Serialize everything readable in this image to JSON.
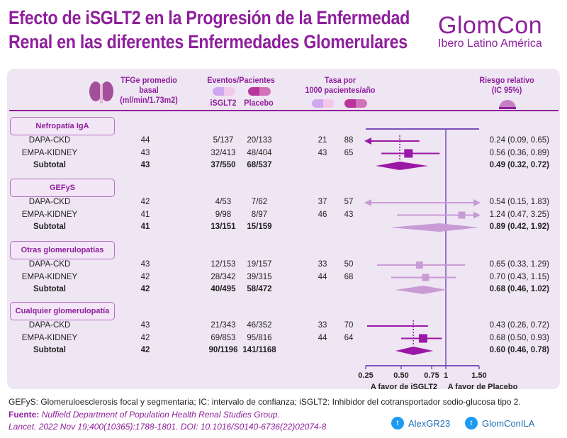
{
  "title": [
    "Efecto de iSGLT2 en la Progresión de la Enfermedad",
    "Renal en las diferentes Enfermedades Glomerulares"
  ],
  "logo": {
    "name": "GlomCon",
    "sub": "Ibero Latino América"
  },
  "header": {
    "egfr": [
      "TFGe promedio",
      "basal",
      "(ml/min/1.73m2)"
    ],
    "events": "Eventos/Pacientes",
    "isglt2": "iSGLT2",
    "placebo": "Placebo",
    "rate": [
      "Tasa por",
      "1000 pacientes/año"
    ],
    "rr": [
      "Riesgo relativo",
      "(IC 95%)"
    ]
  },
  "colors": {
    "dark": "#9b18a6",
    "light": "#c99bd6",
    "axis": "#7b4fb8",
    "title": "#8e1f9c"
  },
  "chart_data": {
    "type": "forest",
    "xscale": "log",
    "xticks": [
      "0.25",
      "0.50",
      "0.75",
      "1",
      "1.50"
    ],
    "xlim": [
      0.25,
      1.5
    ],
    "reference": 1,
    "xlabel_left": "A favor de iSGLT2",
    "xlabel_right": "A favor de Placebo",
    "groups": [
      {
        "label": "Nefropatía IgA",
        "shade": "dark",
        "dotted": true,
        "rows": [
          {
            "study": "DAPA-CKD",
            "egfr": "44",
            "ev_isglt2": "5/137",
            "ev_placebo": "20/133",
            "rate_isglt2": "21",
            "rate_placebo": "88",
            "rr": 0.24,
            "lo": 0.09,
            "hi": 0.65,
            "text": "0.24 (0.09, 0.65)",
            "w": 0
          },
          {
            "study": "EMPA-KIDNEY",
            "egfr": "43",
            "ev_isglt2": "32/413",
            "ev_placebo": "48/404",
            "rate_isglt2": "43",
            "rate_placebo": "65",
            "rr": 0.56,
            "lo": 0.36,
            "hi": 0.89,
            "text": "0.56 (0.36, 0.89)",
            "w": 1
          }
        ],
        "subtotal": {
          "study": "Subtotal",
          "egfr": "43",
          "ev_isglt2": "37/550",
          "ev_placebo": "68/537",
          "rr": 0.49,
          "lo": 0.32,
          "hi": 0.72,
          "text": "0.49 (0.32, 0.72)"
        }
      },
      {
        "label": "GEFyS",
        "shade": "light",
        "dotted": false,
        "rows": [
          {
            "study": "DAPA-CKD",
            "egfr": "42",
            "ev_isglt2": "4/53",
            "ev_placebo": "7/62",
            "rate_isglt2": "37",
            "rate_placebo": "57",
            "rr": 0.54,
            "lo": 0.15,
            "hi": 1.83,
            "text": "0.54 (0.15, 1.83)",
            "w": 0
          },
          {
            "study": "EMPA-KIDNEY",
            "egfr": "41",
            "ev_isglt2": "9/98",
            "ev_placebo": "8/97",
            "rate_isglt2": "46",
            "rate_placebo": "43",
            "rr": 1.24,
            "lo": 0.47,
            "hi": 3.25,
            "text": "1.24 (0.47, 3.25)",
            "w": 0.8
          }
        ],
        "subtotal": {
          "study": "Subtotal",
          "egfr": "41",
          "ev_isglt2": "13/151",
          "ev_placebo": "15/159",
          "rr": 0.89,
          "lo": 0.42,
          "hi": 1.92,
          "text": "0.89 (0.42, 1.92)"
        }
      },
      {
        "label": "Otras glomerulopatías",
        "shade": "light",
        "dotted": false,
        "rows": [
          {
            "study": "DAPA-CKD",
            "egfr": "43",
            "ev_isglt2": "12/153",
            "ev_placebo": "19/157",
            "rate_isglt2": "33",
            "rate_placebo": "50",
            "rr": 0.65,
            "lo": 0.33,
            "hi": 1.29,
            "text": "0.65 (0.33, 1.29)",
            "w": 0.8
          },
          {
            "study": "EMPA-KIDNEY",
            "egfr": "42",
            "ev_isglt2": "28/342",
            "ev_placebo": "39/315",
            "rate_isglt2": "44",
            "rate_placebo": "68",
            "rr": 0.7,
            "lo": 0.43,
            "hi": 1.15,
            "text": "0.70 (0.43, 1.15)",
            "w": 0.8
          }
        ],
        "subtotal": {
          "study": "Subtotal",
          "egfr": "42",
          "ev_isglt2": "40/495",
          "ev_placebo": "58/472",
          "rr": 0.68,
          "lo": 0.46,
          "hi": 1.02,
          "text": "0.68 (0.46, 1.02)"
        }
      },
      {
        "label": "Cualquier glomerulopatía",
        "shade": "dark",
        "dotted": true,
        "rows": [
          {
            "study": "DAPA-CKD",
            "egfr": "43",
            "ev_isglt2": "21/343",
            "ev_placebo": "46/352",
            "rate_isglt2": "33",
            "rate_placebo": "70",
            "rr": 0.43,
            "lo": 0.26,
            "hi": 0.72,
            "text": "0.43 (0.26, 0.72)",
            "w": 0
          },
          {
            "study": "EMPA-KIDNEY",
            "egfr": "42",
            "ev_isglt2": "69/853",
            "ev_placebo": "95/816",
            "rate_isglt2": "44",
            "rate_placebo": "64",
            "rr": 0.68,
            "lo": 0.5,
            "hi": 0.93,
            "text": "0.68 (0.50, 0.93)",
            "w": 1
          }
        ],
        "subtotal": {
          "study": "Subtotal",
          "egfr": "42",
          "ev_isglt2": "90/1196",
          "ev_placebo": "141/1168",
          "rr": 0.6,
          "lo": 0.46,
          "hi": 0.78,
          "text": "0.60 (0.46, 0.78)"
        }
      }
    ]
  },
  "footer": {
    "abbrev": "GEFyS: Glomeruloesclerosis focal y segmentaria; IC: intervalo de confianza; iSGLT2: Inhibidor del cotransportador sodio-glucosa tipo 2.",
    "source_label": "Fuente:",
    "source": "Nuffield Department of Population Health Renal Studies Group.",
    "citation": "Lancet. 2022 Nov 19;400(10365):1788-1801. DOI: 10.1016/S0140-6736(22)02074-8",
    "twitter1": "AlexGR23",
    "twitter2": "GlomConILA"
  }
}
